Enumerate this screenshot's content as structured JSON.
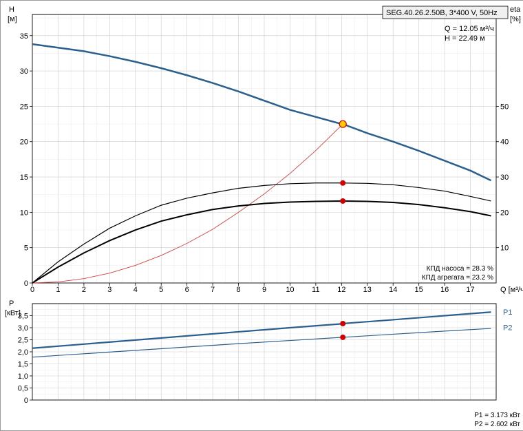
{
  "title_box": {
    "text": "SEG.40.26.2.50B, 3*400 V, 50Hz",
    "bg": "#f0f0f0",
    "border": "#000000",
    "fontsize": 11
  },
  "operating_point": {
    "q_label": "Q = 12.05 м³/ч",
    "h_label": "H = 22.49 м",
    "fontsize": 11
  },
  "efficiency_labels": {
    "pump": "КПД насоса = 28.3 %",
    "unit": "КПД агрегата = 23.2 %",
    "fontsize": 10
  },
  "power_result": {
    "p1": "P1 = 3.173 кВт",
    "p2": "P2 = 2.602 кВт",
    "fontsize": 10
  },
  "axes": {
    "h_label": "H",
    "h_unit": "[м]",
    "eta_label": "eta",
    "eta_unit": "[%]",
    "p_label": "P",
    "p_unit": "[кВт]",
    "q_label": "Q [м³/ч]",
    "fontsize": 11,
    "color": "#000000"
  },
  "top_chart": {
    "x_min": 0,
    "x_max": 18,
    "y_min": 0,
    "y_max": 38,
    "eta_min": 0,
    "eta_max": 76,
    "x_ticks": [
      0,
      1,
      2,
      3,
      4,
      5,
      6,
      7,
      8,
      9,
      10,
      11,
      12,
      13,
      14,
      15,
      16,
      17
    ],
    "x_tick_labels": [
      "0",
      "1",
      "2",
      "3",
      "4",
      "5",
      "6",
      "7",
      "8",
      "9",
      "10",
      "11",
      "12",
      "13",
      "14",
      "15",
      "16",
      "17"
    ],
    "y_ticks": [
      0,
      5,
      10,
      15,
      20,
      25,
      30,
      35
    ],
    "y_tick_labels": [
      "0",
      "5",
      "10",
      "15",
      "20",
      "25",
      "30",
      "35"
    ],
    "eta_ticks": [
      10,
      20,
      30,
      40,
      50
    ],
    "eta_tick_labels": [
      "10",
      "20",
      "30",
      "40",
      "50"
    ],
    "grid_color": "#cccccc",
    "plot_bg": "#ffffff",
    "head_curve": {
      "color": "#2b5f8e",
      "width": 2.5,
      "points": [
        [
          0,
          33.8
        ],
        [
          1,
          33.3
        ],
        [
          2,
          32.8
        ],
        [
          3,
          32.1
        ],
        [
          4,
          31.3
        ],
        [
          5,
          30.4
        ],
        [
          6,
          29.4
        ],
        [
          7,
          28.3
        ],
        [
          8,
          27.1
        ],
        [
          9,
          25.8
        ],
        [
          10,
          24.5
        ],
        [
          11,
          23.5
        ],
        [
          12,
          22.5
        ],
        [
          12.05,
          22.49
        ],
        [
          13,
          21.2
        ],
        [
          14,
          20.0
        ],
        [
          15,
          18.7
        ],
        [
          16,
          17.3
        ],
        [
          17,
          15.9
        ],
        [
          17.8,
          14.5
        ]
      ]
    },
    "eff_pump": {
      "color": "#000000",
      "width": 1.2,
      "points": [
        [
          0,
          0
        ],
        [
          1,
          6
        ],
        [
          2,
          11
        ],
        [
          3,
          15.5
        ],
        [
          4,
          19
        ],
        [
          5,
          22
        ],
        [
          6,
          24
        ],
        [
          7,
          25.5
        ],
        [
          8,
          26.8
        ],
        [
          9,
          27.6
        ],
        [
          10,
          28.1
        ],
        [
          11,
          28.3
        ],
        [
          12,
          28.3
        ],
        [
          13,
          28.2
        ],
        [
          14,
          27.8
        ],
        [
          15,
          27.0
        ],
        [
          16,
          26.0
        ],
        [
          17,
          24.5
        ],
        [
          17.8,
          23.2
        ]
      ]
    },
    "eff_unit": {
      "color": "#000000",
      "width": 2.0,
      "points": [
        [
          0,
          0
        ],
        [
          1,
          4.5
        ],
        [
          2,
          8.5
        ],
        [
          3,
          12
        ],
        [
          4,
          15
        ],
        [
          5,
          17.5
        ],
        [
          6,
          19.3
        ],
        [
          7,
          20.8
        ],
        [
          8,
          21.8
        ],
        [
          9,
          22.5
        ],
        [
          10,
          22.9
        ],
        [
          11,
          23.1
        ],
        [
          12,
          23.2
        ],
        [
          13,
          23.1
        ],
        [
          14,
          22.8
        ],
        [
          15,
          22.2
        ],
        [
          16,
          21.3
        ],
        [
          17,
          20.2
        ],
        [
          17.8,
          19.0
        ]
      ]
    },
    "system_curve": {
      "color": "#d04040",
      "width": 0.9,
      "points": [
        [
          0,
          0
        ],
        [
          1,
          0.15
        ],
        [
          2,
          0.62
        ],
        [
          3,
          1.4
        ],
        [
          4,
          2.49
        ],
        [
          5,
          3.89
        ],
        [
          6,
          5.6
        ],
        [
          7,
          7.6
        ],
        [
          8,
          10.0
        ],
        [
          9,
          12.6
        ],
        [
          10,
          15.5
        ],
        [
          11,
          18.75
        ],
        [
          12.05,
          22.49
        ]
      ]
    },
    "markers": {
      "q": 12.05,
      "head_marker": {
        "y": 22.49,
        "fill": "#ffcc00",
        "stroke": "#cc0000",
        "r": 5
      },
      "eff_pump_marker": {
        "y": 28.3,
        "fill": "#d00000",
        "r": 4
      },
      "eff_unit_marker": {
        "y": 23.2,
        "fill": "#d00000",
        "r": 4
      }
    }
  },
  "bottom_chart": {
    "x_min": 0,
    "x_max": 18,
    "y_min": 0,
    "y_max": 4.0,
    "y_ticks": [
      0,
      0.5,
      1.0,
      1.5,
      2.0,
      2.5,
      3.0,
      3.5
    ],
    "y_tick_labels": [
      "0",
      "0,5",
      "1,0",
      "1,5",
      "2,0",
      "2,5",
      "3,0",
      "3,5"
    ],
    "grid_color": "#cccccc",
    "p1_curve": {
      "color": "#2b5f8e",
      "width": 2.2,
      "label": "P1",
      "points": [
        [
          0,
          2.15
        ],
        [
          2,
          2.32
        ],
        [
          4,
          2.49
        ],
        [
          6,
          2.66
        ],
        [
          8,
          2.83
        ],
        [
          10,
          3.0
        ],
        [
          12,
          3.16
        ],
        [
          12.05,
          3.173
        ],
        [
          14,
          3.33
        ],
        [
          16,
          3.5
        ],
        [
          17.8,
          3.65
        ]
      ]
    },
    "p2_curve": {
      "color": "#2b5f8e",
      "width": 1.2,
      "label": "P2",
      "points": [
        [
          0,
          1.78
        ],
        [
          2,
          1.92
        ],
        [
          4,
          2.06
        ],
        [
          6,
          2.2
        ],
        [
          8,
          2.34
        ],
        [
          10,
          2.47
        ],
        [
          12,
          2.6
        ],
        [
          12.05,
          2.602
        ],
        [
          14,
          2.73
        ],
        [
          16,
          2.86
        ],
        [
          17.8,
          2.97
        ]
      ]
    },
    "markers": {
      "q": 12.05,
      "p1_marker": {
        "y": 3.173,
        "fill": "#d00000",
        "r": 4
      },
      "p2_marker": {
        "y": 2.602,
        "fill": "#d00000",
        "r": 4
      }
    }
  }
}
